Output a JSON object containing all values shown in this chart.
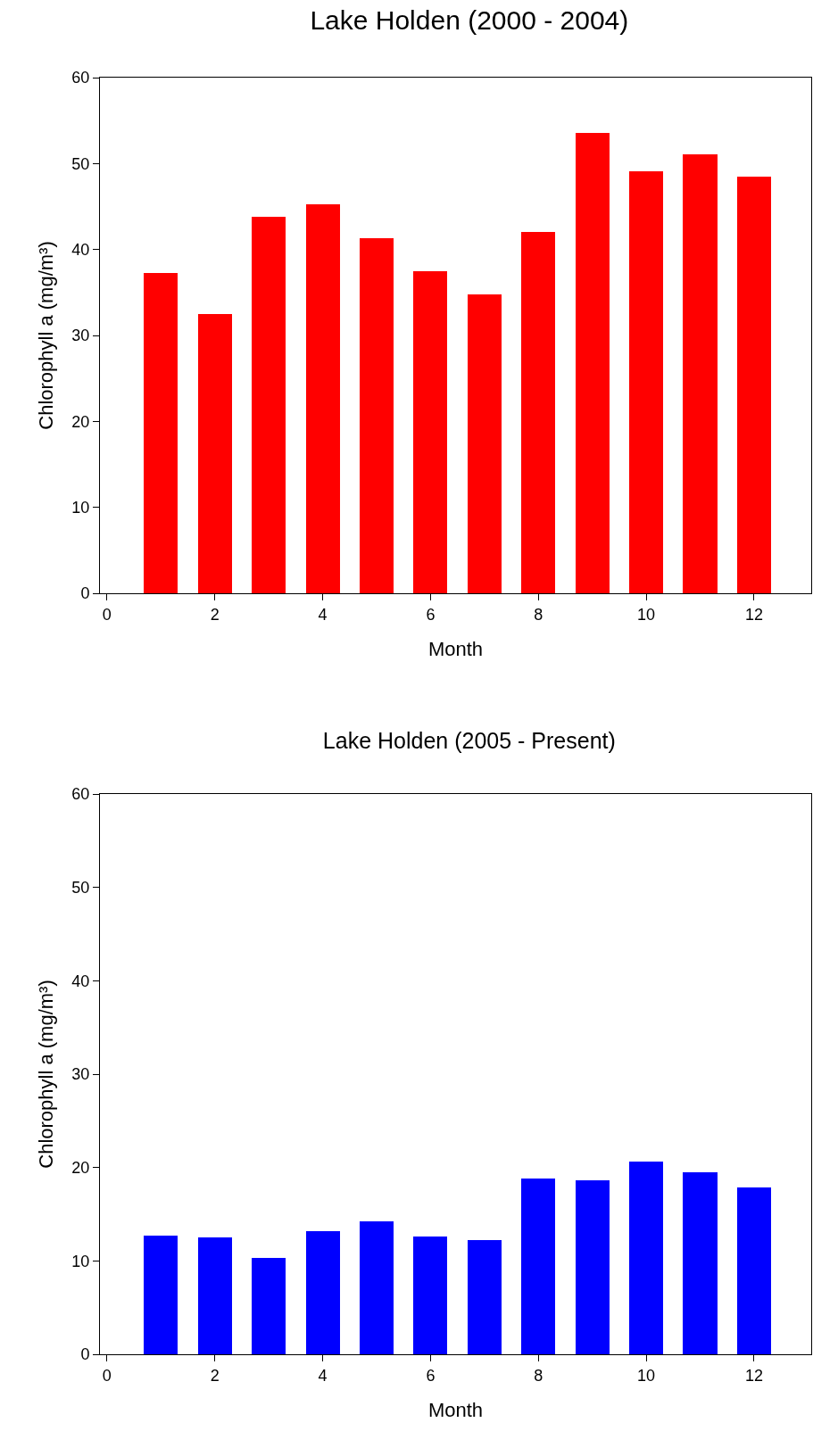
{
  "chart_data": [
    {
      "type": "bar",
      "title": "Lake Holden (2000 - 2004)",
      "xlabel": "Month",
      "ylabel": "Chlorophyll a (mg/m³)",
      "x": [
        1,
        2,
        3,
        4,
        5,
        6,
        7,
        8,
        9,
        10,
        11,
        12
      ],
      "values": [
        37.3,
        32.5,
        43.8,
        45.3,
        41.3,
        37.5,
        34.8,
        42.0,
        53.6,
        49.1,
        51.1,
        48.5
      ],
      "color": "#ff0000",
      "xlim": [
        -0.13,
        13.06
      ],
      "xticks": [
        0,
        2,
        4,
        6,
        8,
        10,
        12
      ],
      "ylim": [
        0,
        60
      ],
      "yticks": [
        0,
        10,
        20,
        30,
        40,
        50,
        60
      ],
      "grid": false
    },
    {
      "type": "bar",
      "title": "Lake Holden (2005 - Present)",
      "xlabel": "Month",
      "ylabel": "Chlorophyll a (mg/m³)",
      "x": [
        1,
        2,
        3,
        4,
        5,
        6,
        7,
        8,
        9,
        10,
        11,
        12
      ],
      "values": [
        12.7,
        12.5,
        10.3,
        13.2,
        14.2,
        12.6,
        12.2,
        18.8,
        18.6,
        20.6,
        19.5,
        17.9
      ],
      "color": "#0000ff",
      "xlim": [
        -0.13,
        13.06
      ],
      "xticks": [
        0,
        2,
        4,
        6,
        8,
        10,
        12
      ],
      "ylim": [
        0,
        60
      ],
      "yticks": [
        0,
        10,
        20,
        30,
        40,
        50,
        60
      ],
      "grid": false
    }
  ]
}
